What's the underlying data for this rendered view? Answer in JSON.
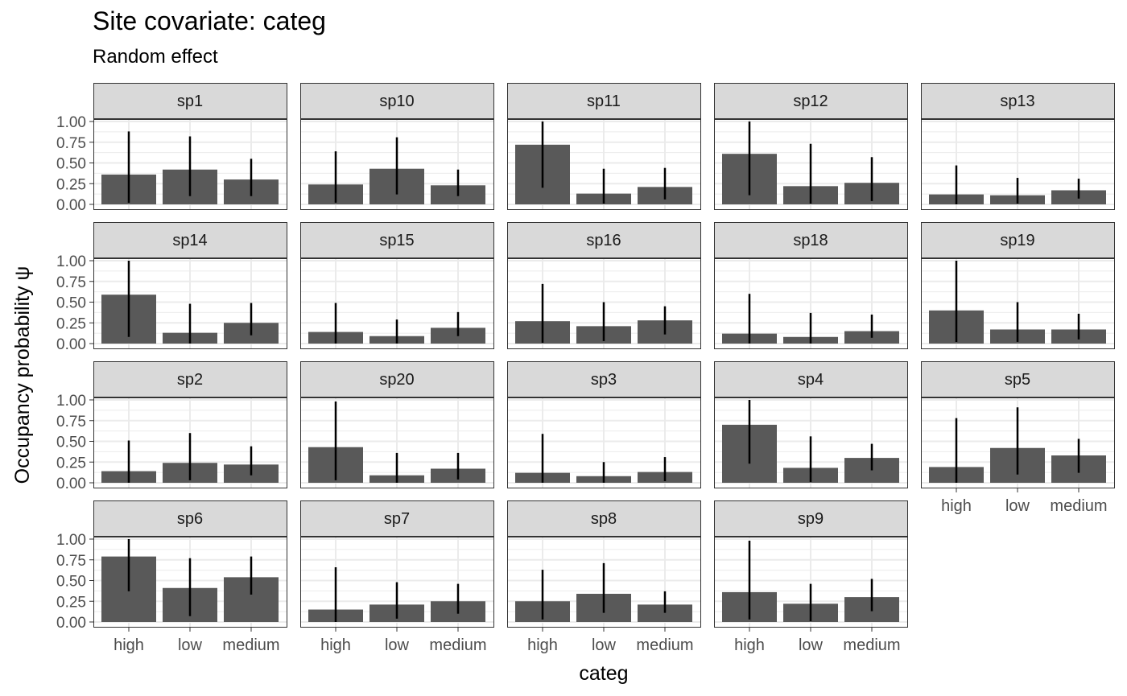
{
  "chart_data": {
    "type": "bar",
    "title": "Site covariate: categ",
    "subtitle": "Random effect",
    "xlabel": "categ",
    "ylabel": "Occupancy probability  ψ",
    "categories": [
      "high",
      "low",
      "medium"
    ],
    "ylim": [
      0,
      1
    ],
    "yticks": [
      "0.00",
      "0.25",
      "0.50",
      "0.75",
      "1.00"
    ],
    "grid": true,
    "facets": [
      {
        "label": "sp1",
        "values": [
          0.36,
          0.42,
          0.3
        ],
        "lower": [
          0.02,
          0.1,
          0.1
        ],
        "upper": [
          0.88,
          0.82,
          0.55
        ]
      },
      {
        "label": "sp10",
        "values": [
          0.24,
          0.43,
          0.23
        ],
        "lower": [
          0.02,
          0.12,
          0.1
        ],
        "upper": [
          0.64,
          0.81,
          0.42
        ]
      },
      {
        "label": "sp11",
        "values": [
          0.72,
          0.13,
          0.21
        ],
        "lower": [
          0.2,
          0.01,
          0.06
        ],
        "upper": [
          1.0,
          0.43,
          0.44
        ]
      },
      {
        "label": "sp12",
        "values": [
          0.61,
          0.22,
          0.26
        ],
        "lower": [
          0.11,
          0.01,
          0.04
        ],
        "upper": [
          1.0,
          0.73,
          0.57
        ]
      },
      {
        "label": "sp13",
        "values": [
          0.12,
          0.11,
          0.17
        ],
        "lower": [
          0.0,
          0.01,
          0.07
        ],
        "upper": [
          0.47,
          0.32,
          0.31
        ]
      },
      {
        "label": "sp14",
        "values": [
          0.59,
          0.13,
          0.25
        ],
        "lower": [
          0.08,
          0.0,
          0.1
        ],
        "upper": [
          1.0,
          0.48,
          0.49
        ]
      },
      {
        "label": "sp15",
        "values": [
          0.14,
          0.09,
          0.19
        ],
        "lower": [
          0.0,
          0.0,
          0.09
        ],
        "upper": [
          0.49,
          0.29,
          0.38
        ]
      },
      {
        "label": "sp16",
        "values": [
          0.27,
          0.21,
          0.28
        ],
        "lower": [
          0.01,
          0.03,
          0.11
        ],
        "upper": [
          0.72,
          0.5,
          0.45
        ]
      },
      {
        "label": "sp18",
        "values": [
          0.12,
          0.08,
          0.15
        ],
        "lower": [
          0.0,
          0.0,
          0.07
        ],
        "upper": [
          0.6,
          0.37,
          0.35
        ]
      },
      {
        "label": "sp19",
        "values": [
          0.4,
          0.17,
          0.17
        ],
        "lower": [
          0.02,
          0.02,
          0.05
        ],
        "upper": [
          1.0,
          0.5,
          0.36
        ]
      },
      {
        "label": "sp2",
        "values": [
          0.14,
          0.24,
          0.22
        ],
        "lower": [
          0.0,
          0.03,
          0.09
        ],
        "upper": [
          0.51,
          0.6,
          0.44
        ]
      },
      {
        "label": "sp20",
        "values": [
          0.43,
          0.09,
          0.17
        ],
        "lower": [
          0.03,
          0.0,
          0.04
        ],
        "upper": [
          0.98,
          0.36,
          0.36
        ]
      },
      {
        "label": "sp3",
        "values": [
          0.12,
          0.08,
          0.13
        ],
        "lower": [
          0.0,
          0.0,
          0.02
        ],
        "upper": [
          0.59,
          0.25,
          0.31
        ]
      },
      {
        "label": "sp4",
        "values": [
          0.7,
          0.18,
          0.3
        ],
        "lower": [
          0.23,
          0.01,
          0.15
        ],
        "upper": [
          1.0,
          0.56,
          0.47
        ]
      },
      {
        "label": "sp5",
        "values": [
          0.19,
          0.42,
          0.33
        ],
        "lower": [
          0.0,
          0.1,
          0.12
        ],
        "upper": [
          0.78,
          0.91,
          0.53
        ]
      },
      {
        "label": "sp6",
        "values": [
          0.79,
          0.41,
          0.54
        ],
        "lower": [
          0.37,
          0.07,
          0.33
        ],
        "upper": [
          1.0,
          0.77,
          0.79
        ]
      },
      {
        "label": "sp7",
        "values": [
          0.15,
          0.21,
          0.25
        ],
        "lower": [
          0.0,
          0.04,
          0.1
        ],
        "upper": [
          0.66,
          0.48,
          0.46
        ]
      },
      {
        "label": "sp8",
        "values": [
          0.25,
          0.34,
          0.21
        ],
        "lower": [
          0.03,
          0.11,
          0.11
        ],
        "upper": [
          0.63,
          0.71,
          0.37
        ]
      },
      {
        "label": "sp9",
        "values": [
          0.36,
          0.22,
          0.3
        ],
        "lower": [
          0.03,
          0.01,
          0.13
        ],
        "upper": [
          0.98,
          0.46,
          0.52
        ]
      }
    ],
    "colors": {
      "bar": "#595959",
      "errorbar": "#000000",
      "strip_fill": "#d9d9d9",
      "strip_border": "#333333",
      "panel_border": "#333333",
      "grid": "#ebebeb",
      "tick_text": "#4d4d4d",
      "axis_title": "#000000"
    }
  }
}
